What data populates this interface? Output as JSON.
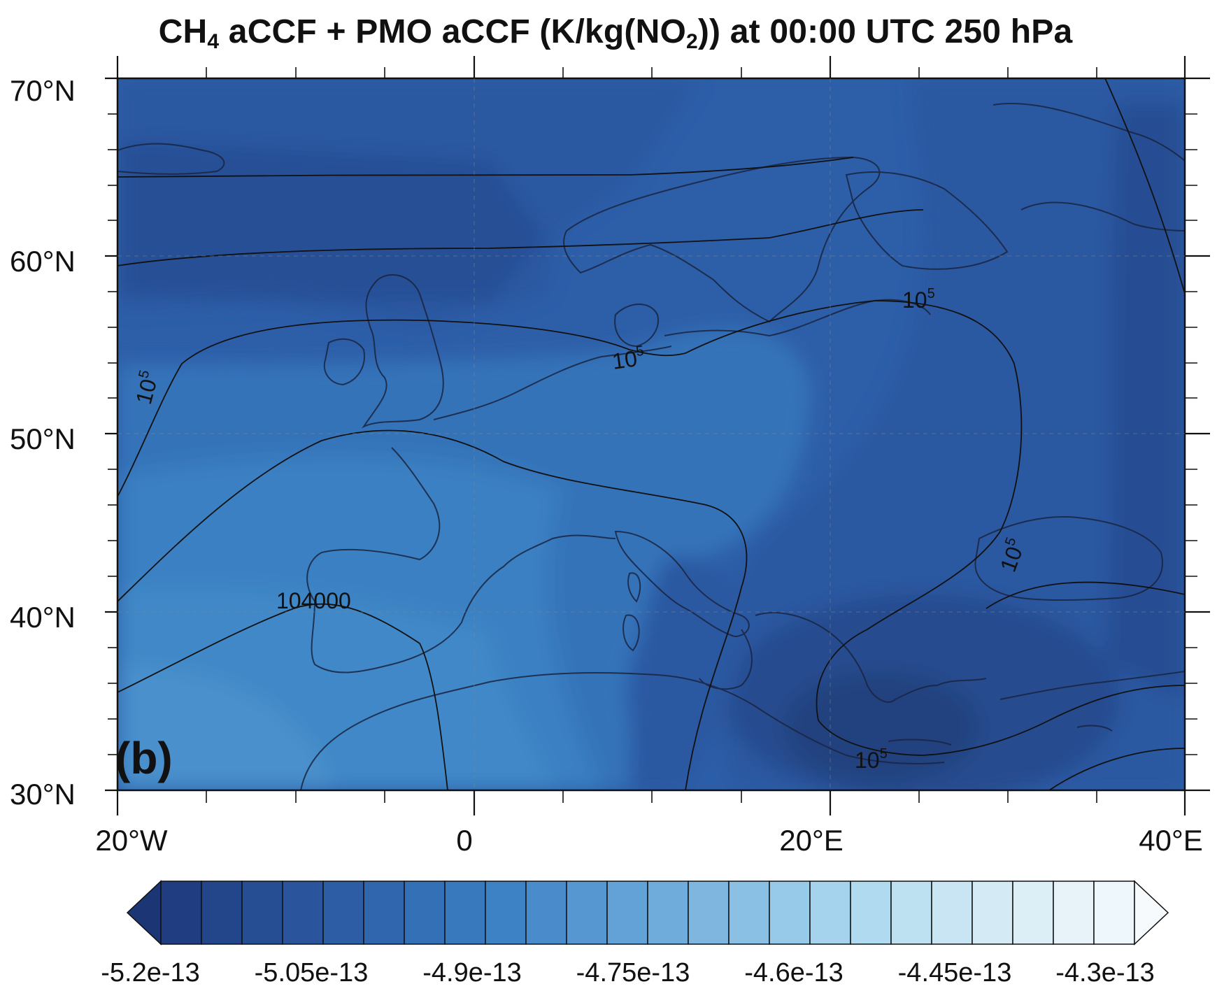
{
  "title_main": "CH",
  "title_sub1": "4",
  "title_mid": " aCCF + PMO aCCF (K/kg(NO",
  "title_sub2": "2",
  "title_end": ")) at 00:00 UTC 250 hPa",
  "panel_label": "(b)",
  "y_ticks": [
    "70°N",
    "60°N",
    "50°N",
    "40°N",
    "30°N"
  ],
  "x_ticks": [
    "20°W",
    "0",
    "20°E",
    "40°E"
  ],
  "contour_labels": {
    "north_west": "10^5",
    "channel": "10^5",
    "baltic": "10^5",
    "black_sea": "10^5",
    "south_east": "10^5",
    "iberia": "104000"
  },
  "colorbar": {
    "tick_labels": [
      "-5.2e-13",
      "-5.05e-13",
      "-4.9e-13",
      "-4.75e-13",
      "-4.6e-13",
      "-4.45e-13",
      "-4.3e-13"
    ],
    "colors": [
      "#1b3575",
      "#1f3d80",
      "#234589",
      "#264e93",
      "#2a559c",
      "#2c5da5",
      "#2f66ad",
      "#3370b5",
      "#3879bd",
      "#3d82c4",
      "#4a8ccb",
      "#5797d1",
      "#63a2d7",
      "#70acdb",
      "#7eb6e0",
      "#8bc0e5",
      "#97cae9",
      "#a5d3ee",
      "#b0daf0",
      "#bee1f2",
      "#c9e5f3",
      "#d4eaf5",
      "#dceff7",
      "#e7f3f9",
      "#eef7fb",
      "#f6fafd"
    ]
  }
}
